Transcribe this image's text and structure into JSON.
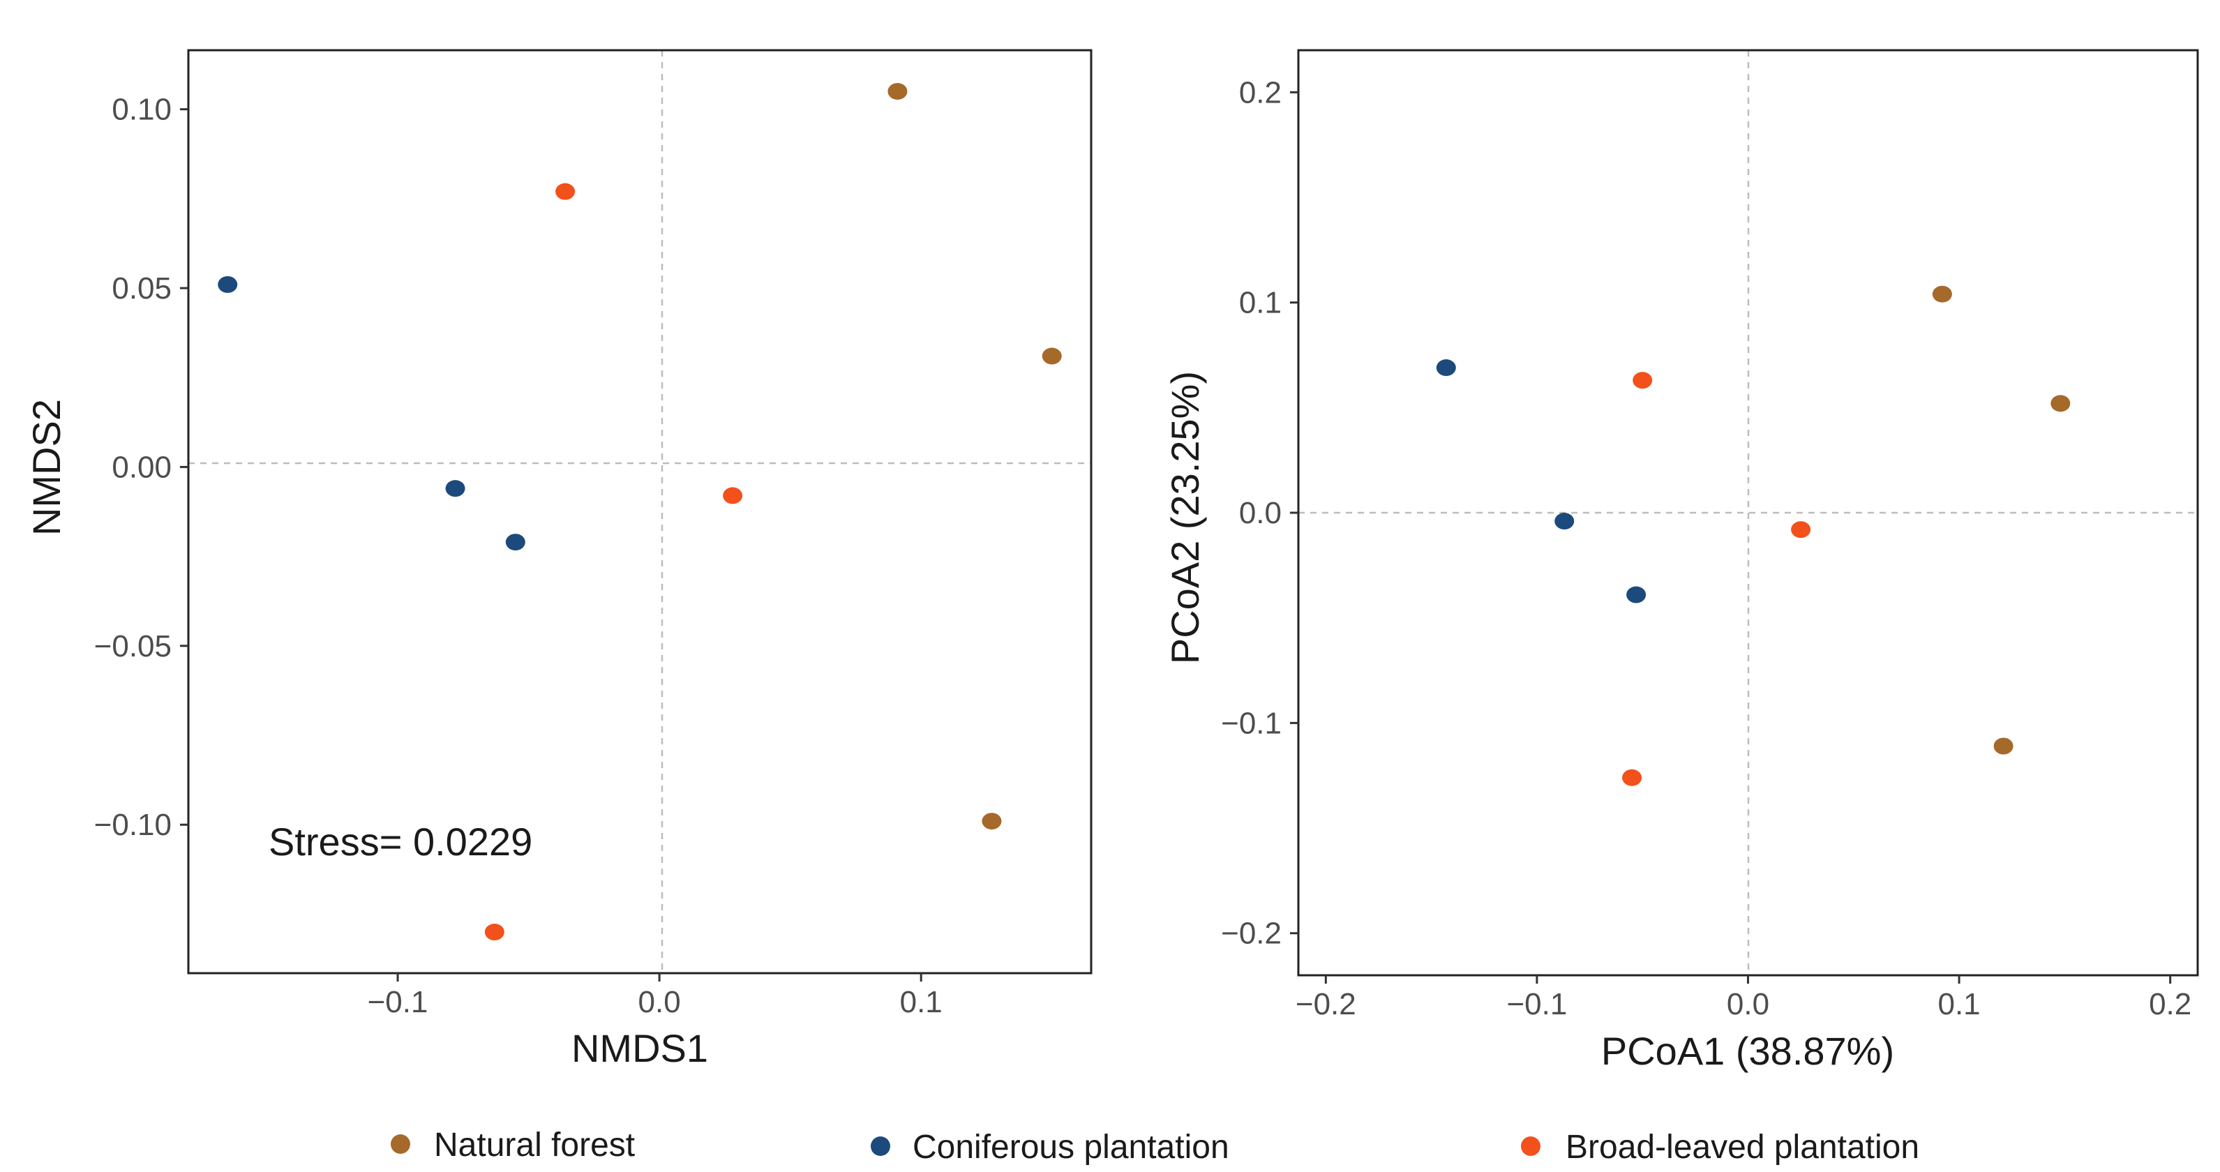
{
  "chart_data": [
    {
      "type": "scatter",
      "xlabel": "NMDS1",
      "ylabel": "NMDS2",
      "xlim": [
        -0.18,
        0.165
      ],
      "ylim": [
        -0.1415,
        0.1165
      ],
      "xticks": [
        -0.1,
        0.0,
        0.1
      ],
      "xtick_labels": [
        "−0.1",
        "0.0",
        "0.1"
      ],
      "yticks": [
        -0.1,
        -0.05,
        0.0,
        0.05,
        0.1
      ],
      "ytick_labels": [
        "−0.10",
        "−0.05",
        "0.00",
        "0.05",
        "0.10"
      ],
      "annotation": {
        "text": "Stress= 0.0229",
        "x": -0.149,
        "y": -0.104
      },
      "series": [
        {
          "name": "Natural forest",
          "x": [
            0.091,
            0.15,
            0.127
          ],
          "y": [
            0.105,
            0.031,
            -0.099
          ]
        },
        {
          "name": "Coniferous plantation",
          "x": [
            -0.165,
            -0.078,
            -0.055
          ],
          "y": [
            0.051,
            -0.006,
            -0.021
          ]
        },
        {
          "name": "Broad-leaved plantation",
          "x": [
            -0.036,
            0.028,
            -0.063
          ],
          "y": [
            0.077,
            -0.008,
            -0.13
          ]
        }
      ]
    },
    {
      "type": "scatter",
      "xlabel": "PCoA1 (38.87%)",
      "ylabel": "PCoA2 (23.25%)",
      "xlim": [
        -0.213,
        0.213
      ],
      "ylim": [
        -0.22,
        0.22
      ],
      "xticks": [
        -0.2,
        -0.1,
        0.0,
        0.1,
        0.2
      ],
      "xtick_labels": [
        "−0.2",
        "−0.1",
        "0.0",
        "0.1",
        "0.2"
      ],
      "yticks": [
        -0.2,
        -0.1,
        0.0,
        0.1,
        0.2
      ],
      "ytick_labels": [
        "−0.2",
        "−0.1",
        "0.0",
        "0.1",
        "0.2"
      ],
      "series": [
        {
          "name": "Natural forest",
          "x": [
            0.092,
            0.148,
            0.121
          ],
          "y": [
            0.104,
            0.052,
            -0.111
          ]
        },
        {
          "name": "Coniferous plantation",
          "x": [
            -0.143,
            -0.087,
            -0.053
          ],
          "y": [
            0.069,
            -0.004,
            -0.039
          ]
        },
        {
          "name": "Broad-leaved plantation",
          "x": [
            -0.05,
            0.025,
            -0.055
          ],
          "y": [
            0.063,
            -0.008,
            -0.126
          ]
        }
      ]
    }
  ],
  "legend": {
    "position": "bottom",
    "items": [
      {
        "label": "Natural forest",
        "color": "#a5692a"
      },
      {
        "label": "Coniferous plantation",
        "color": "#1c4a7c"
      },
      {
        "label": "Broad-leaved plantation",
        "color": "#f2511b"
      }
    ]
  }
}
